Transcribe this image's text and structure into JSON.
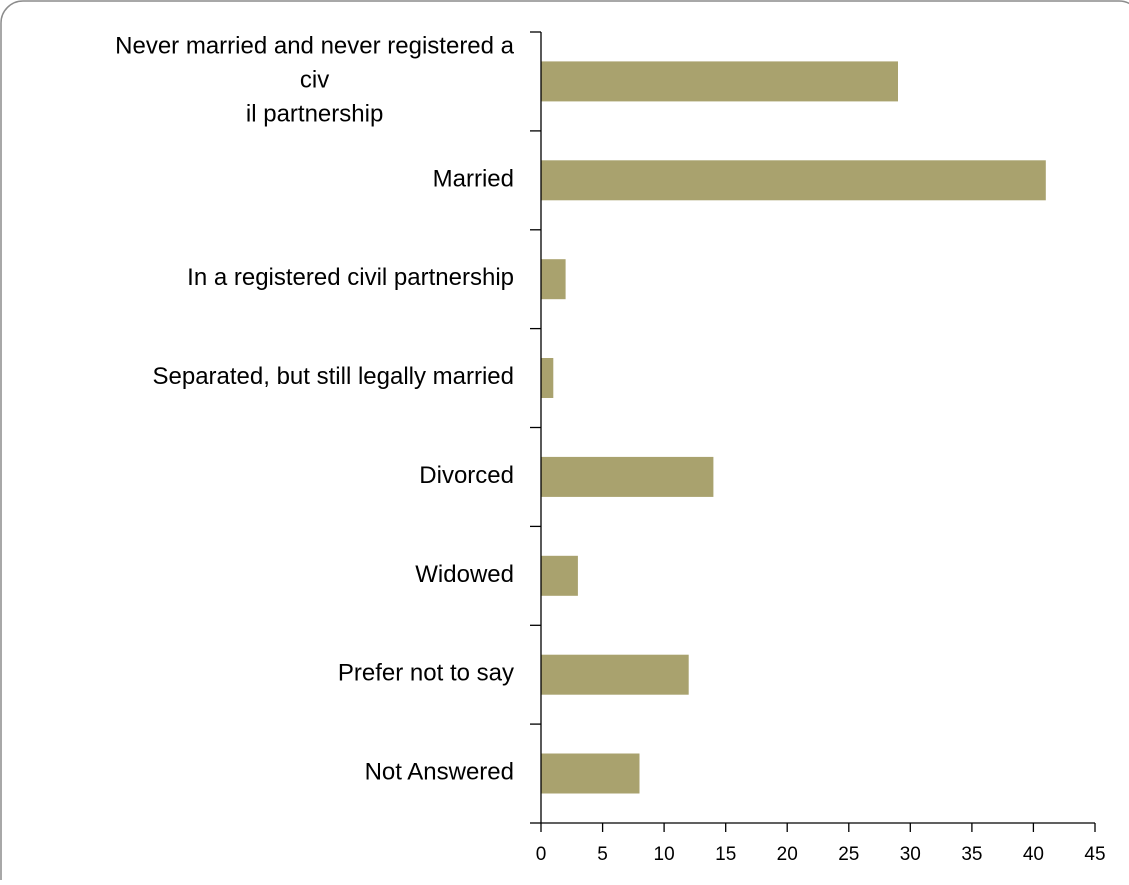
{
  "chart_data": {
    "type": "bar",
    "orientation": "horizontal",
    "categories": [
      [
        "Never married and never registered a",
        "civ",
        "il partnership"
      ],
      [
        "Married"
      ],
      [
        "In a registered civil partnership"
      ],
      [
        "Separated, but still legally married"
      ],
      [
        "Divorced"
      ],
      [
        "Widowed"
      ],
      [
        "Prefer not to say"
      ],
      [
        "Not Answered"
      ]
    ],
    "values": [
      29,
      41,
      2,
      1,
      14,
      3,
      12,
      8
    ],
    "xticks": [
      "0",
      "5",
      "10",
      "15",
      "20",
      "25",
      "30",
      "35",
      "40",
      "45"
    ],
    "xlim": [
      0,
      45
    ],
    "grid": false,
    "legend": "none",
    "title": "",
    "xlabel": "",
    "ylabel": ""
  },
  "colors": {
    "bar": "#a9a26e",
    "axis": "#000000",
    "frame": "#8c8c8c"
  }
}
